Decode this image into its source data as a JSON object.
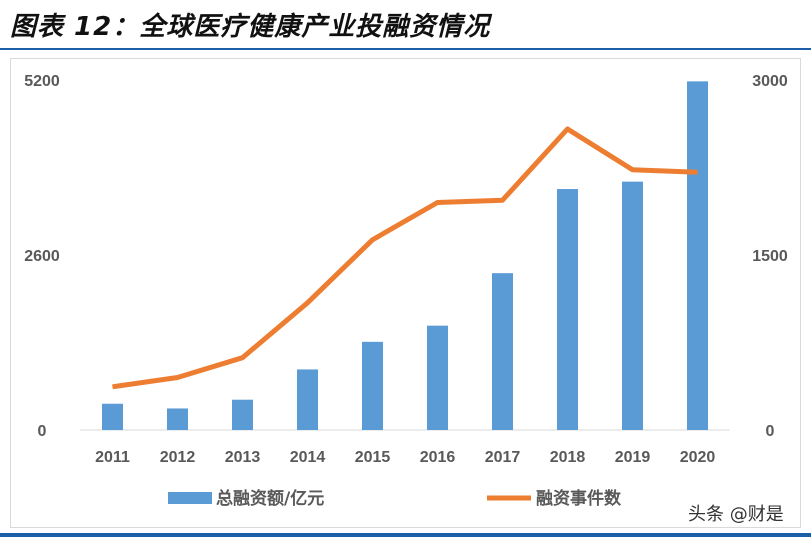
{
  "title": "图表 12：全球医疗健康产业投融资情况",
  "watermark": "头条 @财是",
  "colors": {
    "bar": "#5b9bd5",
    "line": "#ed7d31",
    "accent": "#1a5fa8"
  },
  "chart_data": {
    "type": "bar+line",
    "categories": [
      "2011",
      "2012",
      "2013",
      "2014",
      "2015",
      "2016",
      "2017",
      "2018",
      "2019",
      "2020"
    ],
    "series": [
      {
        "name": "总融资额/亿元",
        "type": "bar",
        "axis": "left",
        "values": [
          390,
          320,
          450,
          900,
          1310,
          1550,
          2330,
          3580,
          3690,
          5180
        ]
      },
      {
        "name": "融资事件数",
        "type": "line",
        "axis": "right",
        "values": [
          370,
          450,
          620,
          1090,
          1630,
          1950,
          1970,
          2580,
          2230,
          2210
        ]
      }
    ],
    "left_axis": {
      "ticks": [
        "5200",
        "2600",
        "0"
      ],
      "ylim": [
        0,
        5200
      ]
    },
    "right_axis": {
      "ticks": [
        "3000",
        "1500",
        "0"
      ],
      "ylim": [
        0,
        3000
      ]
    },
    "legend": "bottom",
    "grid": false
  }
}
